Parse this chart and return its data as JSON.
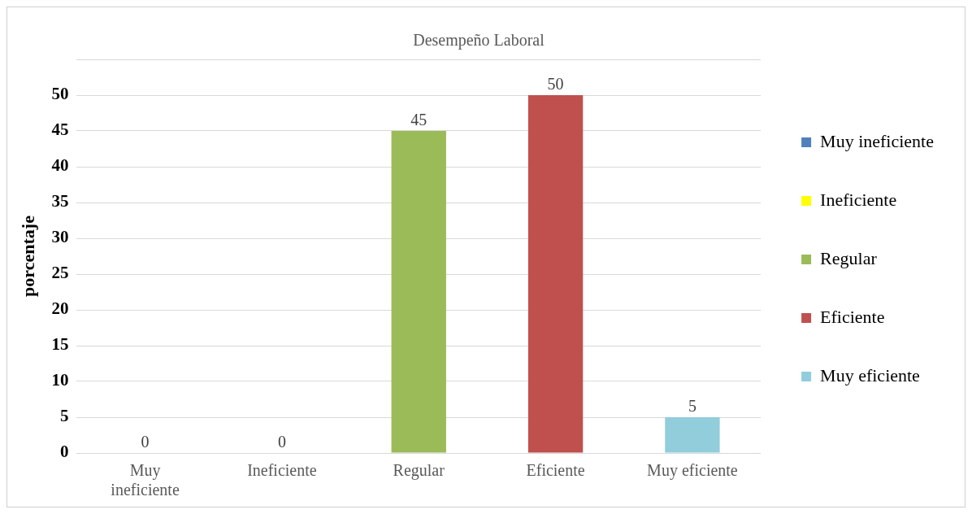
{
  "chart_data": {
    "type": "bar",
    "title": "Desempeño Laboral",
    "ylabel": "porcentaje",
    "categories": [
      "Muy ineficiente",
      "Ineficiente",
      "Regular",
      "Eficiente",
      "Muy eficiente"
    ],
    "series": [
      {
        "name": "Muy ineficiente",
        "color": "#4f81bd",
        "values": [
          0,
          null,
          null,
          null,
          null
        ]
      },
      {
        "name": "Ineficiente",
        "color": "#ffff00",
        "values": [
          null,
          0,
          null,
          null,
          null
        ]
      },
      {
        "name": "Regular",
        "color": "#9bbb59",
        "values": [
          null,
          null,
          45,
          null,
          null
        ]
      },
      {
        "name": "Eficiente",
        "color": "#c0504d",
        "values": [
          null,
          null,
          null,
          50,
          null
        ]
      },
      {
        "name": "Muy eficiente",
        "color": "#92cddc",
        "values": [
          null,
          null,
          null,
          null,
          5
        ]
      }
    ],
    "ylim": [
      0,
      55
    ],
    "yticks": [
      0,
      5,
      10,
      15,
      20,
      25,
      30,
      35,
      40,
      45,
      50,
      {
        "value": 55,
        "label": null
      }
    ],
    "grid": "y",
    "legend": "right",
    "data_labels": true
  }
}
